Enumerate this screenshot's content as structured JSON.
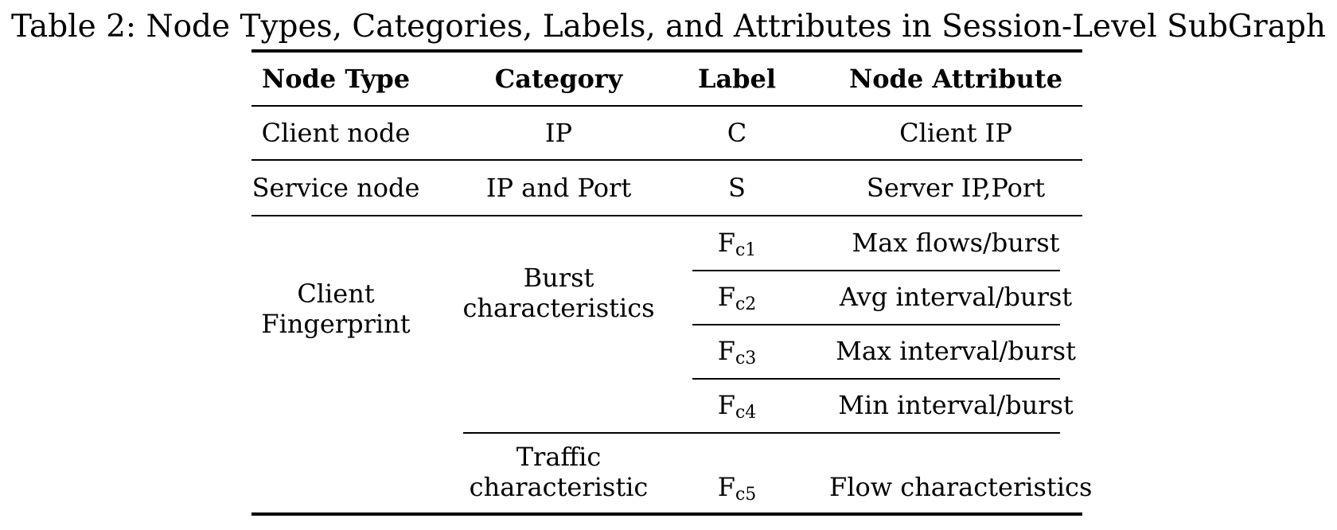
{
  "caption": "Table 2: Node Types, Categories, Labels, and Attributes in Session-Level SubGraph",
  "table": {
    "headers": [
      "Node Type",
      "Category",
      "Label",
      "Node Attribute"
    ],
    "rows": [
      {
        "node_type": "Client node",
        "category": "IP",
        "label": "C",
        "attribute": "Client IP"
      },
      {
        "node_type": "Service node",
        "category": "IP and Port",
        "label": "S",
        "attribute": "Server IP,Port"
      }
    ],
    "fingerprint": {
      "node_type_line1": "Client",
      "node_type_line2": "Fingerprint",
      "burst": {
        "category_line1": "Burst",
        "category_line2": "characteristics",
        "items": [
          {
            "label_main": "F",
            "label_sub": "c1",
            "attribute": "Max flows/burst"
          },
          {
            "label_main": "F",
            "label_sub": "c2",
            "attribute": "Avg interval/burst"
          },
          {
            "label_main": "F",
            "label_sub": "c3",
            "attribute": "Max interval/burst"
          },
          {
            "label_main": "F",
            "label_sub": "c4",
            "attribute": "Min interval/burst"
          }
        ]
      },
      "traffic": {
        "category_line1": "Traffic",
        "category_line2": "characteristic",
        "label_main": "F",
        "label_sub": "c5",
        "attribute": "Flow characteristics"
      }
    }
  }
}
